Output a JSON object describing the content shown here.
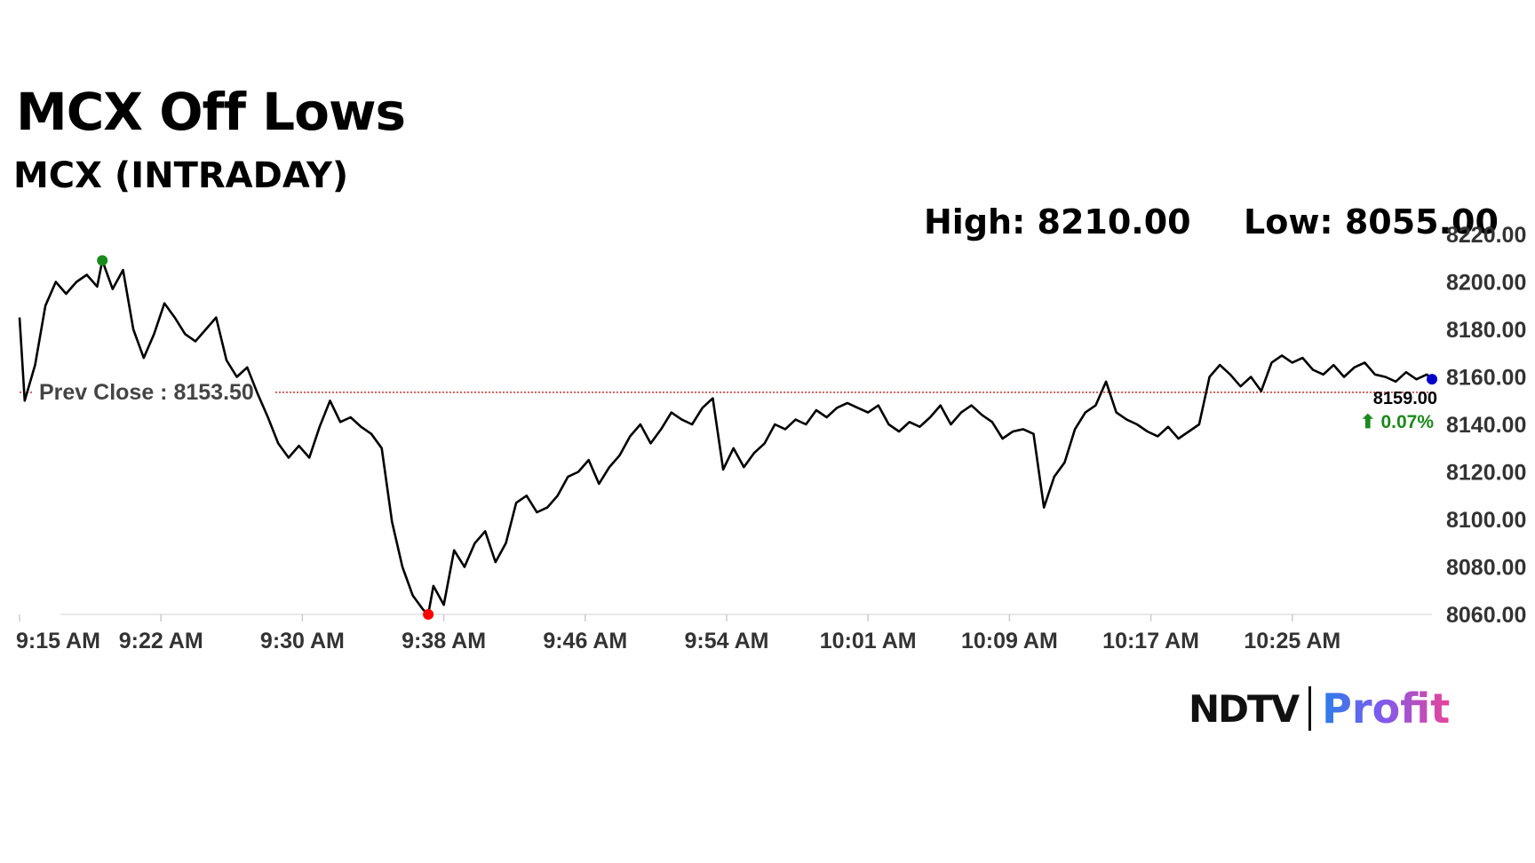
{
  "title": "MCX Off Lows",
  "subtitle": "MCX (INTRADAY)",
  "stats": {
    "high": "High: 8210.00",
    "low": "Low: 8055.00"
  },
  "colors": {
    "line": "#000000",
    "prev_close_line": "#cc0000",
    "high_marker": "#1a8a1a",
    "low_marker": "#ff0000",
    "last_marker": "#0000cc",
    "change_up": "#1a8a1a"
  },
  "logo": {
    "left": "NDTV",
    "right": "Profit"
  },
  "chart_data": {
    "type": "line",
    "ylim": [
      8060,
      8220
    ],
    "yticks": [
      "8060.00",
      "8080.00",
      "8100.00",
      "8120.00",
      "8140.00",
      "8160.00",
      "8180.00",
      "8200.00",
      "8220.00"
    ],
    "xticks": [
      "9:15 AM",
      "9:22 AM",
      "9:30 AM",
      "9:38 AM",
      "9:46 AM",
      "9:54 AM",
      "10:01 AM",
      "10:09 AM",
      "10:17 AM",
      "10:25 AM"
    ],
    "prev_close": 8153.5,
    "prev_close_label": "Prev Close : 8153.50",
    "last_value_label": "8159.00",
    "change_label": "⬆ 0.07%",
    "grid": false,
    "points": [
      [
        0,
        8185
      ],
      [
        1,
        8150
      ],
      [
        3,
        8165
      ],
      [
        5,
        8190
      ],
      [
        7,
        8200
      ],
      [
        9,
        8195
      ],
      [
        11,
        8200
      ],
      [
        13,
        8203
      ],
      [
        15,
        8198
      ],
      [
        16,
        8209
      ],
      [
        18,
        8197
      ],
      [
        20,
        8205
      ],
      [
        22,
        8180
      ],
      [
        24,
        8168
      ],
      [
        26,
        8178
      ],
      [
        28,
        8191
      ],
      [
        30,
        8185
      ],
      [
        32,
        8178
      ],
      [
        34,
        8175
      ],
      [
        36,
        8180
      ],
      [
        38,
        8185
      ],
      [
        40,
        8167
      ],
      [
        42,
        8160
      ],
      [
        44,
        8164
      ],
      [
        46,
        8153
      ],
      [
        48,
        8143
      ],
      [
        50,
        8132
      ],
      [
        52,
        8126
      ],
      [
        54,
        8131
      ],
      [
        56,
        8126
      ],
      [
        58,
        8139
      ],
      [
        60,
        8150
      ],
      [
        62,
        8141
      ],
      [
        64,
        8143
      ],
      [
        66,
        8139
      ],
      [
        68,
        8136
      ],
      [
        70,
        8130
      ],
      [
        72,
        8099
      ],
      [
        74,
        8080
      ],
      [
        76,
        8068
      ],
      [
        78,
        8062
      ],
      [
        79,
        8060
      ],
      [
        80,
        8072
      ],
      [
        82,
        8064
      ],
      [
        84,
        8087
      ],
      [
        86,
        8080
      ],
      [
        88,
        8090
      ],
      [
        90,
        8095
      ],
      [
        92,
        8082
      ],
      [
        94,
        8090
      ],
      [
        96,
        8107
      ],
      [
        98,
        8110
      ],
      [
        100,
        8103
      ],
      [
        102,
        8105
      ],
      [
        104,
        8110
      ],
      [
        106,
        8118
      ],
      [
        108,
        8120
      ],
      [
        110,
        8125
      ],
      [
        112,
        8115
      ],
      [
        114,
        8122
      ],
      [
        116,
        8127
      ],
      [
        118,
        8135
      ],
      [
        120,
        8140
      ],
      [
        122,
        8132
      ],
      [
        124,
        8138
      ],
      [
        126,
        8145
      ],
      [
        128,
        8142
      ],
      [
        130,
        8140
      ],
      [
        132,
        8147
      ],
      [
        134,
        8151
      ],
      [
        136,
        8121
      ],
      [
        138,
        8130
      ],
      [
        140,
        8122
      ],
      [
        142,
        8128
      ],
      [
        144,
        8132
      ],
      [
        146,
        8140
      ],
      [
        148,
        8138
      ],
      [
        150,
        8142
      ],
      [
        152,
        8140
      ],
      [
        154,
        8146
      ],
      [
        156,
        8143
      ],
      [
        158,
        8147
      ],
      [
        160,
        8149
      ],
      [
        162,
        8147
      ],
      [
        164,
        8145
      ],
      [
        166,
        8148
      ],
      [
        168,
        8140
      ],
      [
        170,
        8137
      ],
      [
        172,
        8141
      ],
      [
        174,
        8139
      ],
      [
        176,
        8143
      ],
      [
        178,
        8148
      ],
      [
        180,
        8140
      ],
      [
        182,
        8145
      ],
      [
        184,
        8148
      ],
      [
        186,
        8144
      ],
      [
        188,
        8141
      ],
      [
        190,
        8134
      ],
      [
        192,
        8137
      ],
      [
        194,
        8138
      ],
      [
        196,
        8136
      ],
      [
        198,
        8105
      ],
      [
        200,
        8118
      ],
      [
        202,
        8124
      ],
      [
        204,
        8138
      ],
      [
        206,
        8145
      ],
      [
        208,
        8148
      ],
      [
        210,
        8158
      ],
      [
        212,
        8145
      ],
      [
        214,
        8142
      ],
      [
        216,
        8140
      ],
      [
        218,
        8137
      ],
      [
        220,
        8135
      ],
      [
        222,
        8139
      ],
      [
        224,
        8134
      ],
      [
        226,
        8137
      ],
      [
        228,
        8140
      ],
      [
        230,
        8160
      ],
      [
        232,
        8165
      ],
      [
        234,
        8161
      ],
      [
        236,
        8156
      ],
      [
        238,
        8160
      ],
      [
        240,
        8154
      ],
      [
        242,
        8166
      ],
      [
        244,
        8169
      ],
      [
        246,
        8166
      ],
      [
        248,
        8168
      ],
      [
        250,
        8163
      ],
      [
        252,
        8161
      ],
      [
        254,
        8165
      ],
      [
        256,
        8160
      ],
      [
        258,
        8164
      ],
      [
        260,
        8166
      ],
      [
        262,
        8161
      ],
      [
        264,
        8160
      ],
      [
        266,
        8158
      ],
      [
        268,
        8162
      ],
      [
        270,
        8159
      ],
      [
        272,
        8161
      ],
      [
        273,
        8159
      ]
    ],
    "high_point": [
      16,
      8209
    ],
    "low_point": [
      79,
      8060
    ],
    "last_point": [
      273,
      8159
    ]
  }
}
